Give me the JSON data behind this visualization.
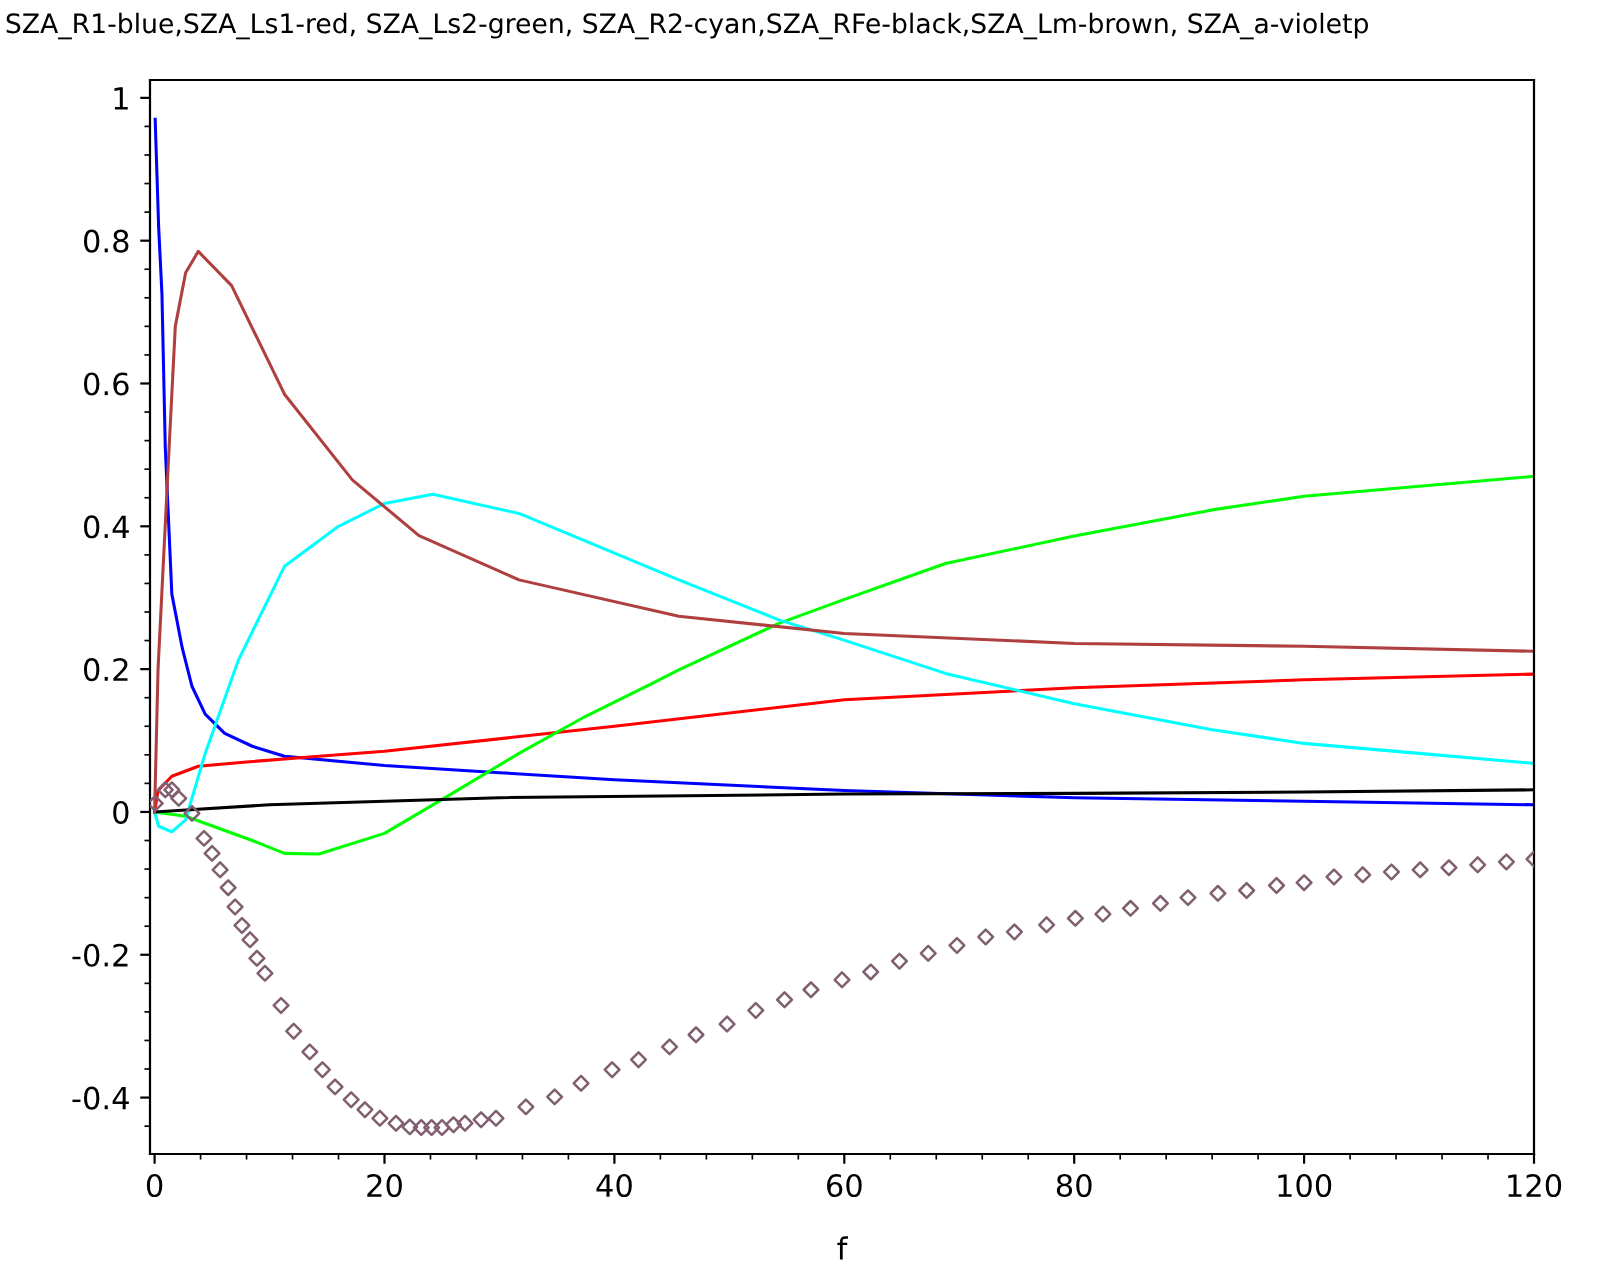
{
  "chart_data": {
    "type": "line",
    "title": "SZA_R1-blue,SZA_Ls1-red, SZA_Ls2-green, SZA_R2-cyan,SZA_RFe-black,SZA_Lm-brown, SZA_a-violetp",
    "xlabel": "f",
    "xlim": [
      -0.4,
      120
    ],
    "ylim": [
      -0.479,
      1.025
    ],
    "xticks": [
      0,
      20,
      40,
      60,
      80,
      100,
      120
    ],
    "yticks": [
      -0.4,
      -0.2,
      0,
      0.2,
      0.4,
      0.6,
      0.8,
      1
    ],
    "grid": false,
    "series": [
      {
        "color": "#0000ff",
        "x": [
          0.05,
          0.35,
          0.64,
          0.93,
          1.5,
          2.4,
          3.25,
          4.4,
          6.1,
          8.5,
          11.3,
          20,
          30,
          40,
          60,
          80,
          100,
          120
        ],
        "values": [
          0.97,
          0.82,
          0.725,
          0.51,
          0.305,
          0.23,
          0.176,
          0.137,
          0.11,
          0.092,
          0.078,
          0.065,
          0.055,
          0.045,
          0.03,
          0.02,
          0.015,
          0.01
        ]
      },
      {
        "color": "#ff0000",
        "x": [
          0,
          0.3,
          1.5,
          3.8,
          8,
          14.3,
          20,
          40,
          60,
          80,
          100,
          120
        ],
        "values": [
          0,
          0.03,
          0.05,
          0.064,
          0.07,
          0.078,
          0.085,
          0.12,
          0.157,
          0.174,
          0.185,
          0.193
        ]
      },
      {
        "color": "#00ff00",
        "x": [
          0,
          2.7,
          8.5,
          11.3,
          14.3,
          20,
          25.9,
          31.7,
          37.5,
          43.3,
          45.6,
          54.3,
          59.9,
          68.8,
          79.9,
          92,
          100,
          120
        ],
        "values": [
          0,
          -0.006,
          -0.04,
          -0.058,
          -0.059,
          -0.03,
          0.026,
          0.082,
          0.134,
          0.18,
          0.199,
          0.264,
          0.297,
          0.348,
          0.386,
          0.423,
          0.442,
          0.47
        ]
      },
      {
        "color": "#00ffff",
        "x": [
          0,
          0.35,
          1.5,
          2.7,
          4.4,
          7.3,
          11.3,
          16,
          20,
          24.2,
          31.7,
          45.6,
          54.3,
          59.9,
          68.8,
          79.9,
          92,
          100,
          110,
          120
        ],
        "values": [
          0,
          -0.02,
          -0.028,
          -0.011,
          0.082,
          0.213,
          0.344,
          0.4,
          0.432,
          0.445,
          0.418,
          0.325,
          0.269,
          0.241,
          0.194,
          0.152,
          0.115,
          0.096,
          0.082,
          0.068
        ]
      },
      {
        "color": "#000000",
        "x": [
          0,
          10,
          30,
          60,
          80,
          100,
          120
        ],
        "values": [
          0,
          0.01,
          0.02,
          0.025,
          0.026,
          0.028,
          0.031
        ]
      },
      {
        "color": "#b04040",
        "x": [
          0,
          0.3,
          1.2,
          1.8,
          2.7,
          3.8,
          6.7,
          11.3,
          17.2,
          23,
          31.7,
          45.6,
          60,
          80,
          100,
          120
        ],
        "values": [
          0,
          0.2,
          0.49,
          0.68,
          0.755,
          0.785,
          0.737,
          0.585,
          0.465,
          0.387,
          0.325,
          0.274,
          0.25,
          0.236,
          0.232,
          0.225
        ]
      },
      {
        "type": "scatter",
        "marker": "diamond",
        "color": "#806070",
        "x": [
          0.05,
          0.93,
          1.5,
          2.1,
          3.25,
          4.3,
          5.0,
          5.7,
          6.4,
          7.0,
          7.6,
          8.3,
          8.9,
          9.6,
          11,
          12.1,
          13.5,
          14.6,
          15.7,
          17.1,
          18.3,
          19.6,
          21,
          22.2,
          23.2,
          24.1,
          25,
          26,
          27,
          28.4,
          29.7,
          32.3,
          34.8,
          37.1,
          39.8,
          42.1,
          44.8,
          47.1,
          49.8,
          52.3,
          54.8,
          57.1,
          59.8,
          62.3,
          64.8,
          67.3,
          69.8,
          72.3,
          74.8,
          77.6,
          80.1,
          82.5,
          84.9,
          87.5,
          89.9,
          92.5,
          95,
          97.6,
          100,
          102.6,
          105.1,
          107.6,
          110.1,
          112.6,
          115.1,
          117.6,
          120
        ],
        "values": [
          0.012,
          0.031,
          0.031,
          0.019,
          -0.002,
          -0.037,
          -0.058,
          -0.081,
          -0.106,
          -0.133,
          -0.159,
          -0.179,
          -0.205,
          -0.226,
          -0.271,
          -0.307,
          -0.336,
          -0.361,
          -0.385,
          -0.403,
          -0.417,
          -0.429,
          -0.436,
          -0.441,
          -0.442,
          -0.442,
          -0.442,
          -0.438,
          -0.436,
          -0.431,
          -0.429,
          -0.413,
          -0.399,
          -0.38,
          -0.361,
          -0.347,
          -0.329,
          -0.312,
          -0.297,
          -0.278,
          -0.263,
          -0.249,
          -0.235,
          -0.224,
          -0.209,
          -0.198,
          -0.187,
          -0.175,
          -0.168,
          -0.158,
          -0.149,
          -0.143,
          -0.135,
          -0.128,
          -0.12,
          -0.114,
          -0.11,
          -0.103,
          -0.099,
          -0.091,
          -0.088,
          -0.084,
          -0.081,
          -0.078,
          -0.074,
          -0.07,
          -0.066
        ]
      }
    ]
  }
}
